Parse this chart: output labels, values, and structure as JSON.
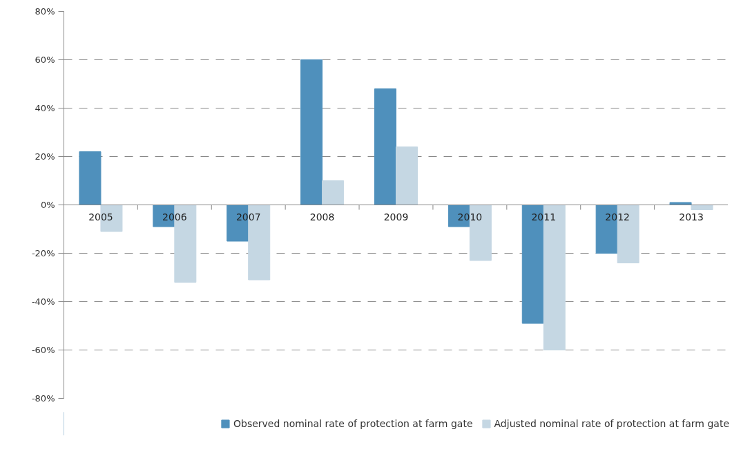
{
  "chart_data": {
    "type": "bar",
    "categories": [
      "2005",
      "2006",
      "2007",
      "2008",
      "2009",
      "2010",
      "2011",
      "2012",
      "2013"
    ],
    "series": [
      {
        "name": "Observed nominal rate of protection at farm gate",
        "color": "#4f90bc",
        "values": [
          22,
          -9,
          -15,
          60,
          48,
          -9,
          -49,
          -20,
          1
        ]
      },
      {
        "name": "Adjusted nominal rate of protection at farm gate",
        "color": "#c5d7e3",
        "values": [
          -11,
          -32,
          -31,
          10,
          24,
          -23,
          -60,
          -24,
          -2
        ]
      }
    ],
    "ylim": [
      -80,
      80
    ],
    "yticks": [
      {
        "value": -80,
        "label": "-80%"
      },
      {
        "value": -60,
        "label": "-60%"
      },
      {
        "value": -40,
        "label": "-40%"
      },
      {
        "value": -20,
        "label": "-20%"
      },
      {
        "value": 0,
        "label": "0%"
      },
      {
        "value": 20,
        "label": "20%"
      },
      {
        "value": 40,
        "label": "40%"
      },
      {
        "value": 60,
        "label": "60%"
      },
      {
        "value": 80,
        "label": "80%"
      }
    ],
    "grid": "y",
    "legend": "bottom"
  }
}
